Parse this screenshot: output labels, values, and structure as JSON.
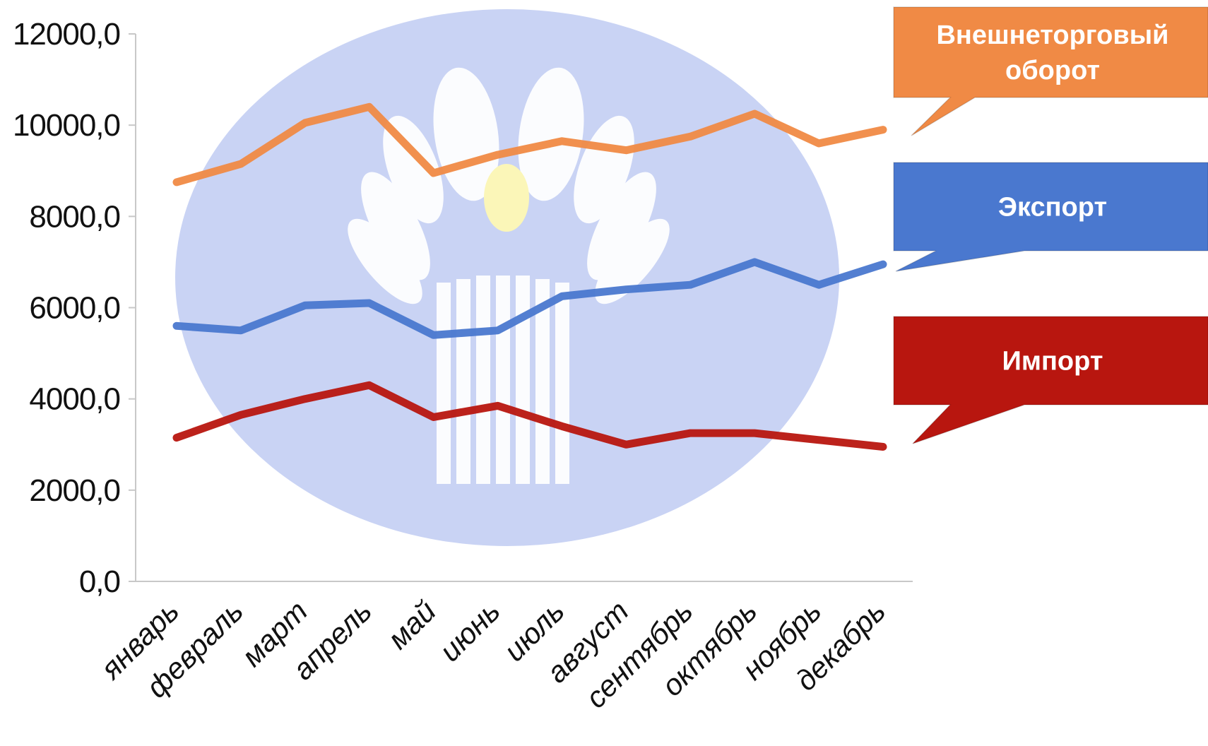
{
  "colors": {
    "background": "#ffffff",
    "emblem_disc": "#c9d3f4",
    "emblem_petals": "#ffffff",
    "emblem_sun": "#fbf6b8",
    "axis": "#c8c8c8",
    "turnover": "#f08a45",
    "export": "#4a78cf",
    "import": "#b8160f"
  },
  "chart_data": {
    "type": "line",
    "title": "",
    "xlabel": "",
    "ylabel": "",
    "ylim": [
      0,
      12000
    ],
    "y_ticks": [
      0,
      2000,
      4000,
      6000,
      8000,
      10000,
      12000
    ],
    "y_tick_labels": [
      "0,0",
      "2000,0",
      "4000,0",
      "6000,0",
      "8000,0",
      "10000,0",
      "12000,0"
    ],
    "grid": false,
    "legend_placement": "right (callout boxes)",
    "categories": [
      "январь",
      "февраль",
      "март",
      "апрель",
      "май",
      "июнь",
      "июль",
      "август",
      "сентябрь",
      "октябрь",
      "ноябрь",
      "декабрь"
    ],
    "series": [
      {
        "key": "turnover",
        "name": "Внешнеторговый оборот",
        "label_lines": [
          "Внешнеторговый",
          "оборот"
        ],
        "color": "#f08a45",
        "values": [
          8750,
          9150,
          10050,
          10400,
          8950,
          9350,
          9650,
          9450,
          9750,
          10250,
          9600,
          9900
        ]
      },
      {
        "key": "export",
        "name": "Экспорт",
        "label_lines": [
          "Экспорт"
        ],
        "color": "#4a78cf",
        "values": [
          5600,
          5500,
          6050,
          6100,
          5400,
          5500,
          6250,
          6400,
          6500,
          7000,
          6500,
          6950
        ]
      },
      {
        "key": "import",
        "name": "Импорт",
        "label_lines": [
          "Импорт"
        ],
        "color": "#b8160f",
        "values": [
          3150,
          3650,
          4000,
          4300,
          3600,
          3850,
          3400,
          3000,
          3250,
          3250,
          3100,
          2950
        ]
      }
    ]
  }
}
